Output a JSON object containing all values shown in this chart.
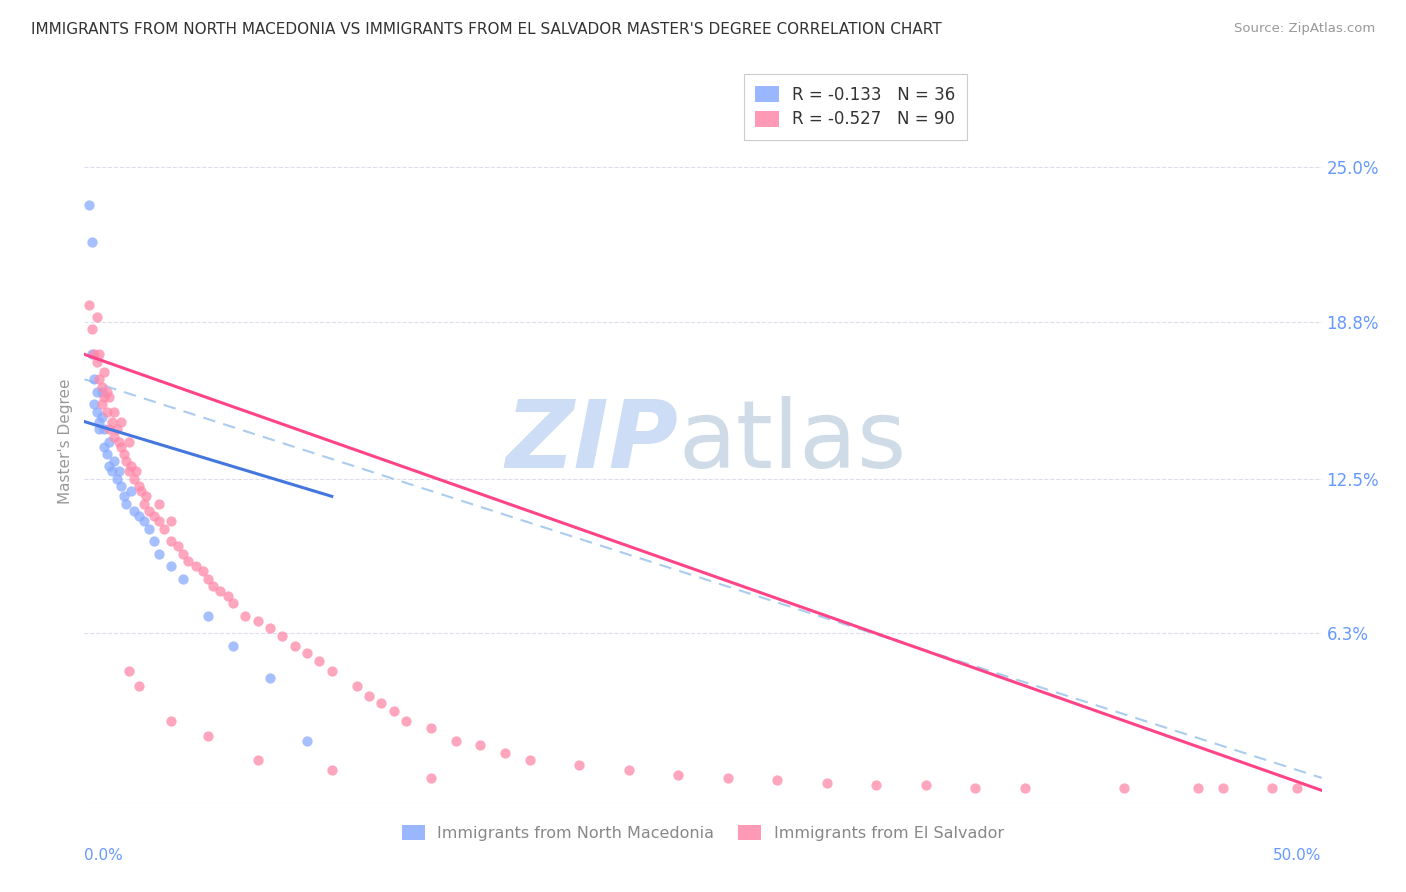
{
  "title": "IMMIGRANTS FROM NORTH MACEDONIA VS IMMIGRANTS FROM EL SALVADOR MASTER'S DEGREE CORRELATION CHART",
  "source": "Source: ZipAtlas.com",
  "ylabel": "Master's Degree",
  "ytick_labels": [
    "25.0%",
    "18.8%",
    "12.5%",
    "6.3%"
  ],
  "ytick_values": [
    0.25,
    0.188,
    0.125,
    0.063
  ],
  "xlim": [
    0.0,
    0.5
  ],
  "ylim": [
    -0.005,
    0.285
  ],
  "color_blue": "#88AAFF",
  "color_pink": "#FF88AA",
  "legend_r1": "R = -0.133   N = 36",
  "legend_r2": "R = -0.527   N = 90",
  "legend_label1": "Immigrants from North Macedonia",
  "legend_label2": "Immigrants from El Salvador",
  "mac_x": [
    0.002,
    0.003,
    0.003,
    0.004,
    0.004,
    0.005,
    0.005,
    0.006,
    0.006,
    0.007,
    0.007,
    0.008,
    0.008,
    0.009,
    0.01,
    0.01,
    0.011,
    0.012,
    0.013,
    0.014,
    0.015,
    0.016,
    0.017,
    0.019,
    0.02,
    0.022,
    0.024,
    0.026,
    0.028,
    0.03,
    0.035,
    0.04,
    0.05,
    0.06,
    0.075,
    0.09
  ],
  "mac_y": [
    0.235,
    0.22,
    0.175,
    0.165,
    0.155,
    0.16,
    0.152,
    0.148,
    0.145,
    0.16,
    0.15,
    0.145,
    0.138,
    0.135,
    0.14,
    0.13,
    0.128,
    0.132,
    0.125,
    0.128,
    0.122,
    0.118,
    0.115,
    0.12,
    0.112,
    0.11,
    0.108,
    0.105,
    0.1,
    0.095,
    0.09,
    0.085,
    0.07,
    0.058,
    0.045,
    0.02
  ],
  "sal_x": [
    0.002,
    0.003,
    0.004,
    0.005,
    0.005,
    0.006,
    0.006,
    0.007,
    0.007,
    0.008,
    0.008,
    0.009,
    0.009,
    0.01,
    0.01,
    0.011,
    0.012,
    0.012,
    0.013,
    0.014,
    0.015,
    0.015,
    0.016,
    0.017,
    0.018,
    0.018,
    0.019,
    0.02,
    0.021,
    0.022,
    0.023,
    0.024,
    0.025,
    0.026,
    0.028,
    0.03,
    0.03,
    0.032,
    0.035,
    0.035,
    0.038,
    0.04,
    0.042,
    0.045,
    0.048,
    0.05,
    0.052,
    0.055,
    0.058,
    0.06,
    0.065,
    0.07,
    0.075,
    0.08,
    0.085,
    0.09,
    0.095,
    0.1,
    0.11,
    0.115,
    0.12,
    0.125,
    0.13,
    0.14,
    0.15,
    0.16,
    0.17,
    0.18,
    0.2,
    0.22,
    0.24,
    0.26,
    0.28,
    0.3,
    0.32,
    0.34,
    0.36,
    0.38,
    0.42,
    0.45,
    0.46,
    0.48,
    0.49,
    0.018,
    0.022,
    0.035,
    0.05,
    0.07,
    0.1,
    0.14
  ],
  "sal_y": [
    0.195,
    0.185,
    0.175,
    0.19,
    0.172,
    0.165,
    0.175,
    0.162,
    0.155,
    0.168,
    0.158,
    0.16,
    0.152,
    0.158,
    0.145,
    0.148,
    0.152,
    0.142,
    0.145,
    0.14,
    0.148,
    0.138,
    0.135,
    0.132,
    0.14,
    0.128,
    0.13,
    0.125,
    0.128,
    0.122,
    0.12,
    0.115,
    0.118,
    0.112,
    0.11,
    0.115,
    0.108,
    0.105,
    0.108,
    0.1,
    0.098,
    0.095,
    0.092,
    0.09,
    0.088,
    0.085,
    0.082,
    0.08,
    0.078,
    0.075,
    0.07,
    0.068,
    0.065,
    0.062,
    0.058,
    0.055,
    0.052,
    0.048,
    0.042,
    0.038,
    0.035,
    0.032,
    0.028,
    0.025,
    0.02,
    0.018,
    0.015,
    0.012,
    0.01,
    0.008,
    0.006,
    0.005,
    0.004,
    0.003,
    0.002,
    0.002,
    0.001,
    0.001,
    0.001,
    0.001,
    0.001,
    0.001,
    0.001,
    0.048,
    0.042,
    0.028,
    0.022,
    0.012,
    0.008,
    0.005
  ],
  "mac_line_x": [
    0.0,
    0.1
  ],
  "mac_line_y": [
    0.148,
    0.118
  ],
  "sal_line_x": [
    0.0,
    0.5
  ],
  "sal_line_y": [
    0.175,
    0.0
  ],
  "dash_line_x": [
    0.0,
    0.5
  ],
  "dash_line_y": [
    0.165,
    0.005
  ]
}
